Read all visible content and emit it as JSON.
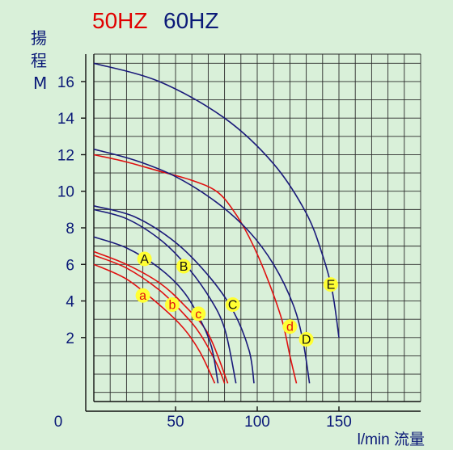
{
  "chart_data": {
    "type": "line",
    "title_50hz": "50HZ",
    "title_60hz": "60HZ",
    "ylabel_lines": [
      "揚",
      "程",
      "M"
    ],
    "xlabel": "l/min 流量",
    "x_origin_label": "0",
    "xlim": [
      0,
      200
    ],
    "ylim": [
      -1.5,
      17.5
    ],
    "x_ticks": [
      50,
      100,
      150
    ],
    "y_ticks": [
      2,
      4,
      6,
      8,
      10,
      12,
      14,
      16
    ],
    "grid": true,
    "colors": {
      "hz50": "#e01010",
      "hz60": "#1a1a7a",
      "marker_fill": "#ffff33",
      "background": "#d9f0d9"
    },
    "series": [
      {
        "name": "a",
        "freq": "50HZ",
        "x": [
          0,
          20,
          40,
          55,
          65,
          74
        ],
        "y": [
          6.0,
          5.2,
          3.8,
          2.5,
          1.2,
          -0.5
        ]
      },
      {
        "name": "b",
        "freq": "50HZ",
        "x": [
          0,
          20,
          40,
          55,
          65,
          75,
          80
        ],
        "y": [
          6.5,
          5.8,
          4.6,
          3.3,
          2.2,
          0.6,
          -0.5
        ]
      },
      {
        "name": "c",
        "freq": "50HZ",
        "x": [
          0,
          20,
          40,
          55,
          70,
          82
        ],
        "y": [
          6.7,
          6.0,
          5.0,
          3.8,
          2.2,
          -0.5
        ]
      },
      {
        "name": "d",
        "freq": "50HZ",
        "x": [
          0,
          20,
          40,
          60,
          75,
          85,
          95,
          105,
          115,
          120,
          124
        ],
        "y": [
          12.0,
          11.6,
          11.1,
          10.6,
          10.0,
          9.0,
          7.5,
          5.5,
          3.0,
          1.0,
          -0.5
        ]
      },
      {
        "name": "A",
        "freq": "60HZ",
        "x": [
          0,
          20,
          40,
          55,
          65,
          72,
          76
        ],
        "y": [
          7.5,
          6.9,
          5.8,
          4.5,
          3.0,
          1.5,
          -0.5
        ]
      },
      {
        "name": "B",
        "freq": "60HZ",
        "x": [
          0,
          20,
          40,
          55,
          70,
          80,
          87
        ],
        "y": [
          9.0,
          8.5,
          7.4,
          6.1,
          4.3,
          2.5,
          -0.5
        ]
      },
      {
        "name": "C",
        "freq": "60HZ",
        "x": [
          0,
          25,
          50,
          70,
          85,
          95,
          98
        ],
        "y": [
          9.2,
          8.6,
          7.2,
          5.4,
          3.5,
          1.3,
          -0.5
        ]
      },
      {
        "name": "D",
        "freq": "60HZ",
        "x": [
          0,
          25,
          50,
          75,
          95,
          110,
          122,
          128,
          132
        ],
        "y": [
          12.3,
          11.7,
          10.8,
          9.4,
          7.8,
          6.0,
          3.8,
          1.8,
          -0.5
        ]
      },
      {
        "name": "E",
        "freq": "60HZ",
        "x": [
          0,
          40,
          80,
          110,
          130,
          140,
          146,
          150
        ],
        "y": [
          17.0,
          16.0,
          14.0,
          11.5,
          8.8,
          6.5,
          4.5,
          2.0
        ]
      }
    ],
    "markers": [
      {
        "label": "A",
        "freq": "60HZ",
        "x": 31,
        "y": 6.3
      },
      {
        "label": "B",
        "freq": "60HZ",
        "x": 55,
        "y": 5.9
      },
      {
        "label": "C",
        "freq": "60HZ",
        "x": 85,
        "y": 3.8
      },
      {
        "label": "D",
        "freq": "60HZ",
        "x": 130,
        "y": 1.9
      },
      {
        "label": "E",
        "freq": "60HZ",
        "x": 145,
        "y": 4.9
      },
      {
        "label": "a",
        "freq": "50HZ",
        "x": 30,
        "y": 4.3
      },
      {
        "label": "b",
        "freq": "50HZ",
        "x": 48,
        "y": 3.8
      },
      {
        "label": "c",
        "freq": "50HZ",
        "x": 64,
        "y": 3.3
      },
      {
        "label": "d",
        "freq": "50HZ",
        "x": 120,
        "y": 2.6
      }
    ]
  }
}
